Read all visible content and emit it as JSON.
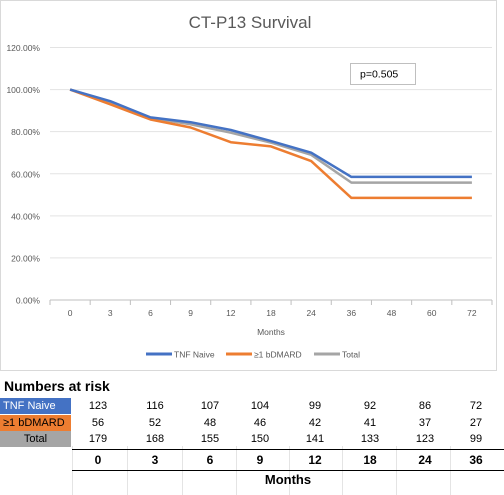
{
  "chart_data": {
    "type": "line",
    "title": "CT-P13  Survival",
    "xlabel": "Months",
    "ylabel": "",
    "categories": [
      "0",
      "3",
      "6",
      "9",
      "12",
      "18",
      "24",
      "36",
      "48",
      "60",
      "72"
    ],
    "ylim": [
      0,
      120
    ],
    "yticks": [
      "0.00%",
      "20.00%",
      "40.00%",
      "60.00%",
      "80.00%",
      "100.00%",
      "120.00%"
    ],
    "grid": true,
    "legend_position": "bottom",
    "annotation": "p=0.505",
    "series": [
      {
        "name": "TNF Naive",
        "color": "#4472C4",
        "values": [
          100,
          94.5,
          86.8,
          84.5,
          80.8,
          75.5,
          70,
          58.5,
          58.5,
          58.5,
          58.5
        ]
      },
      {
        "name": "≥1 bDMARD",
        "color": "#ED7D31",
        "values": [
          100,
          93,
          85.8,
          82,
          75,
          73,
          66,
          48.5,
          48.5,
          48.5,
          48.5
        ]
      },
      {
        "name": "Total",
        "color": "#A5A5A5",
        "values": [
          100,
          94,
          86.5,
          83.5,
          79.5,
          74.8,
          69,
          55.8,
          55.8,
          55.8,
          55.8
        ]
      }
    ]
  },
  "risk_table": {
    "title": "Numbers at risk",
    "rows": [
      {
        "label": "TNF Naive",
        "bg": "#4472C4",
        "fg": "#ffffff",
        "values": [
          "123",
          "116",
          "107",
          "104",
          "99",
          "92",
          "86",
          "72"
        ]
      },
      {
        "label": "≥1 bDMARD",
        "bg": "#ED7D31",
        "fg": "#000000",
        "values": [
          "56",
          "52",
          "48",
          "46",
          "42",
          "41",
          "37",
          "27"
        ]
      },
      {
        "label": "Total",
        "bg": "#A5A5A5",
        "fg": "#000000",
        "values": [
          "179",
          "168",
          "155",
          "150",
          "141",
          "133",
          "123",
          "99"
        ]
      }
    ],
    "timepoints": [
      "0",
      "3",
      "6",
      "9",
      "12",
      "18",
      "24",
      "36"
    ],
    "xlabel": "Months"
  }
}
